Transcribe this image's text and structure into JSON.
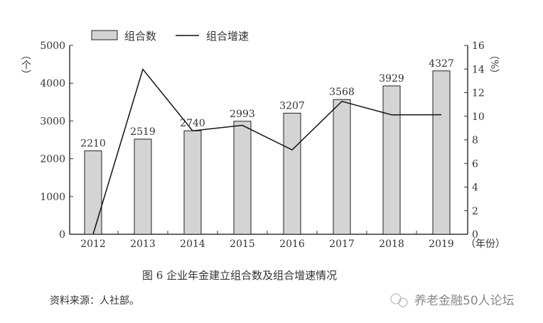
{
  "chart_data": {
    "type": "bar+line",
    "title": "图 6 企业年金建立组合数及组合增速情况",
    "categories": [
      "2012",
      "2013",
      "2014",
      "2015",
      "2016",
      "2017",
      "2018",
      "2019"
    ],
    "series": [
      {
        "name": "组合数",
        "type": "bar",
        "axis": "left",
        "values": [
          2210,
          2519,
          2740,
          2993,
          3207,
          3568,
          3929,
          4327
        ]
      },
      {
        "name": "组合增速",
        "type": "line",
        "axis": "right",
        "values": [
          0,
          13.98,
          8.77,
          9.23,
          7.15,
          11.26,
          10.12,
          10.13
        ]
      }
    ],
    "ylabel_left": "（个）",
    "ylabel_right": "（%）",
    "xlabel": "（年份）",
    "ylim_left": [
      0,
      5000
    ],
    "yticks_left": [
      "0",
      "1000",
      "2000",
      "3000",
      "4000",
      "5000"
    ],
    "ylim_right": [
      0,
      16
    ],
    "yticks_right": [
      "0",
      "2",
      "4",
      "6",
      "8",
      "10",
      "12",
      "14",
      "16"
    ],
    "legend": "top",
    "grid": false,
    "colors": {
      "bar": "#d4d4d4",
      "line": "#111111"
    }
  },
  "source": "资料来源：人社部。",
  "watermark": "养老金融50人论坛"
}
